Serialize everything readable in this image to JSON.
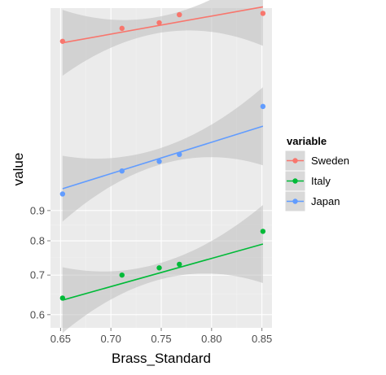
{
  "chart_data": {
    "type": "scatter",
    "trendlines": "linear fit with grey confidence band",
    "xlabel": "Brass_Standard",
    "ylabel": "value",
    "xlim": [
      0.64,
      0.86
    ],
    "ylim": [
      0.57,
      1.98
    ],
    "y_scale": "log",
    "x_ticks": [
      0.65,
      0.7,
      0.75,
      0.8,
      0.85
    ],
    "x_tick_labels": [
      "0.65",
      "0.70",
      "0.75",
      "0.80",
      "0.85"
    ],
    "y_ticks": [
      0.6,
      0.7,
      0.8,
      0.9
    ],
    "y_tick_labels": [
      "0.6",
      "0.7",
      "0.8",
      "0.9"
    ],
    "grid": true,
    "background": "#ebebeb",
    "legend_position": "right",
    "legend_title": "variable",
    "x": [
      0.652,
      0.711,
      0.748,
      0.768,
      0.851
    ],
    "series": [
      {
        "name": "Sweden",
        "color": "#f8766d",
        "values": [
          1.74,
          1.83,
          1.87,
          1.93,
          1.94
        ],
        "fit": [
          1.73,
          1.8,
          1.85,
          1.87,
          1.99
        ]
      },
      {
        "name": "Italy",
        "color": "#00ba38",
        "values": [
          0.64,
          0.7,
          0.72,
          0.73,
          0.83
        ],
        "fit": [
          0.635,
          0.675,
          0.7,
          0.715,
          0.79
        ]
      },
      {
        "name": "Japan",
        "color": "#619cff",
        "values": [
          0.96,
          1.05,
          1.09,
          1.12,
          1.35
        ],
        "fit": [
          0.98,
          1.03,
          1.07,
          1.09,
          1.25
        ]
      }
    ]
  }
}
